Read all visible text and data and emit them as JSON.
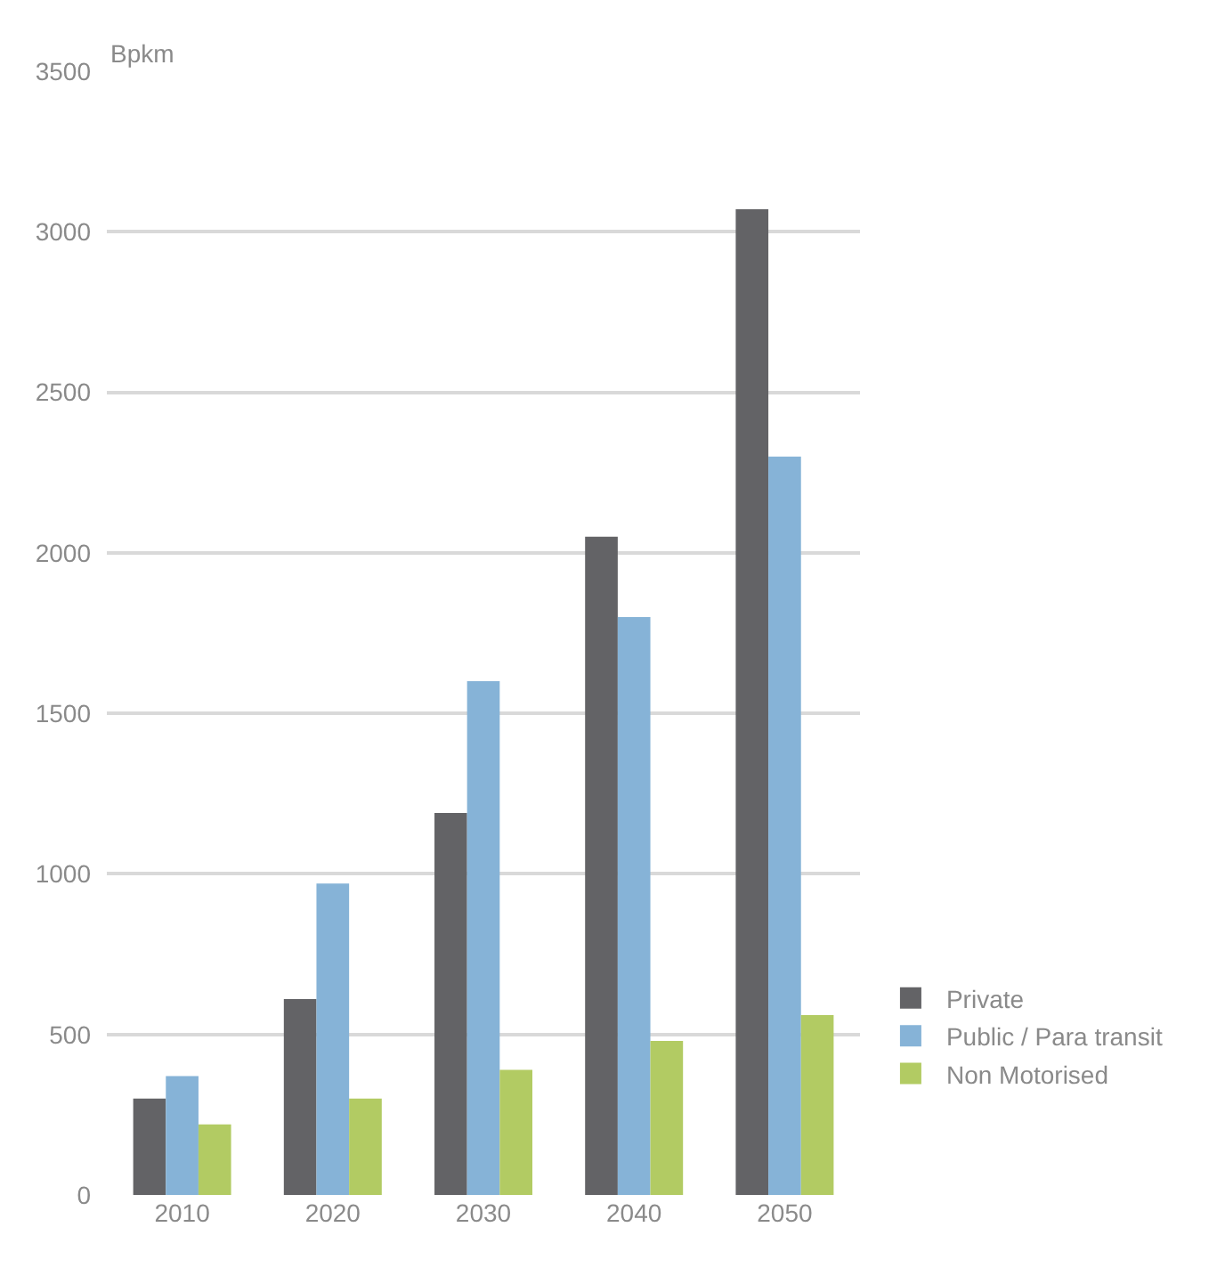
{
  "chart_data": {
    "type": "bar",
    "ylabel": "Bpkm",
    "categories": [
      "2010",
      "2020",
      "2030",
      "2040",
      "2050"
    ],
    "series": [
      {
        "name": "Private",
        "color": "#636366",
        "values": [
          300,
          610,
          1190,
          2050,
          3070
        ]
      },
      {
        "name": "Public / Para transit",
        "color": "#86b3d7",
        "values": [
          370,
          970,
          1600,
          1800,
          2300
        ]
      },
      {
        "name": "Non Motorised",
        "color": "#b2cb63",
        "values": [
          220,
          300,
          390,
          480,
          560
        ]
      }
    ],
    "ylim": [
      0,
      3500
    ],
    "yticks": [
      0,
      500,
      1000,
      1500,
      2000,
      2500,
      3000,
      3500
    ],
    "grid": "y",
    "legend": "bottom right"
  }
}
